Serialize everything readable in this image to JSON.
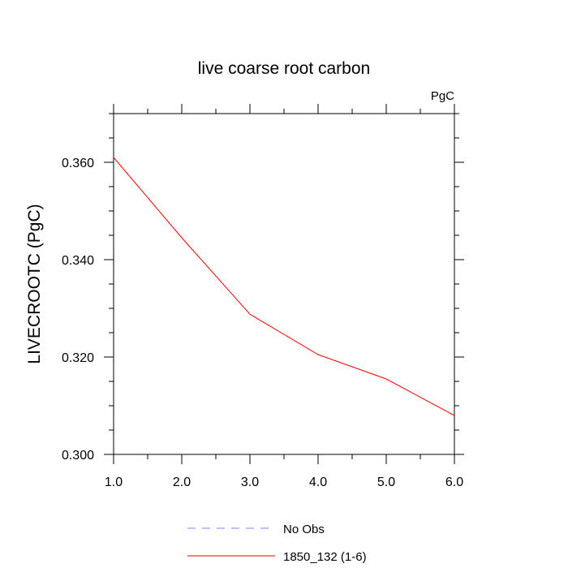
{
  "chart_data": {
    "type": "line",
    "title": "live coarse root carbon",
    "units_label": "PgC",
    "xlabel": "",
    "ylabel": "LIVECROOTC  (PgC)",
    "xlim": [
      1.0,
      6.0
    ],
    "ylim": [
      0.3,
      0.37
    ],
    "x_ticks": [
      1.0,
      2.0,
      3.0,
      4.0,
      5.0,
      6.0
    ],
    "x_tick_labels": [
      "1.0",
      "2.0",
      "3.0",
      "4.0",
      "5.0",
      "6.0"
    ],
    "y_ticks": [
      0.3,
      0.32,
      0.34,
      0.36
    ],
    "y_tick_labels": [
      "0.300",
      "0.320",
      "0.340",
      "0.360"
    ],
    "grid": false,
    "legend_position": "bottom",
    "series": [
      {
        "name": "No Obs",
        "color": "#8080ff",
        "dash": "dashed",
        "x": [],
        "y": []
      },
      {
        "name": "1850_132 (1-6)",
        "color": "#ff0000",
        "dash": "solid",
        "x": [
          1.0,
          2.0,
          3.0,
          4.0,
          5.0,
          6.0
        ],
        "y": [
          0.361,
          0.3445,
          0.3288,
          0.3205,
          0.3155,
          0.308
        ]
      }
    ]
  }
}
